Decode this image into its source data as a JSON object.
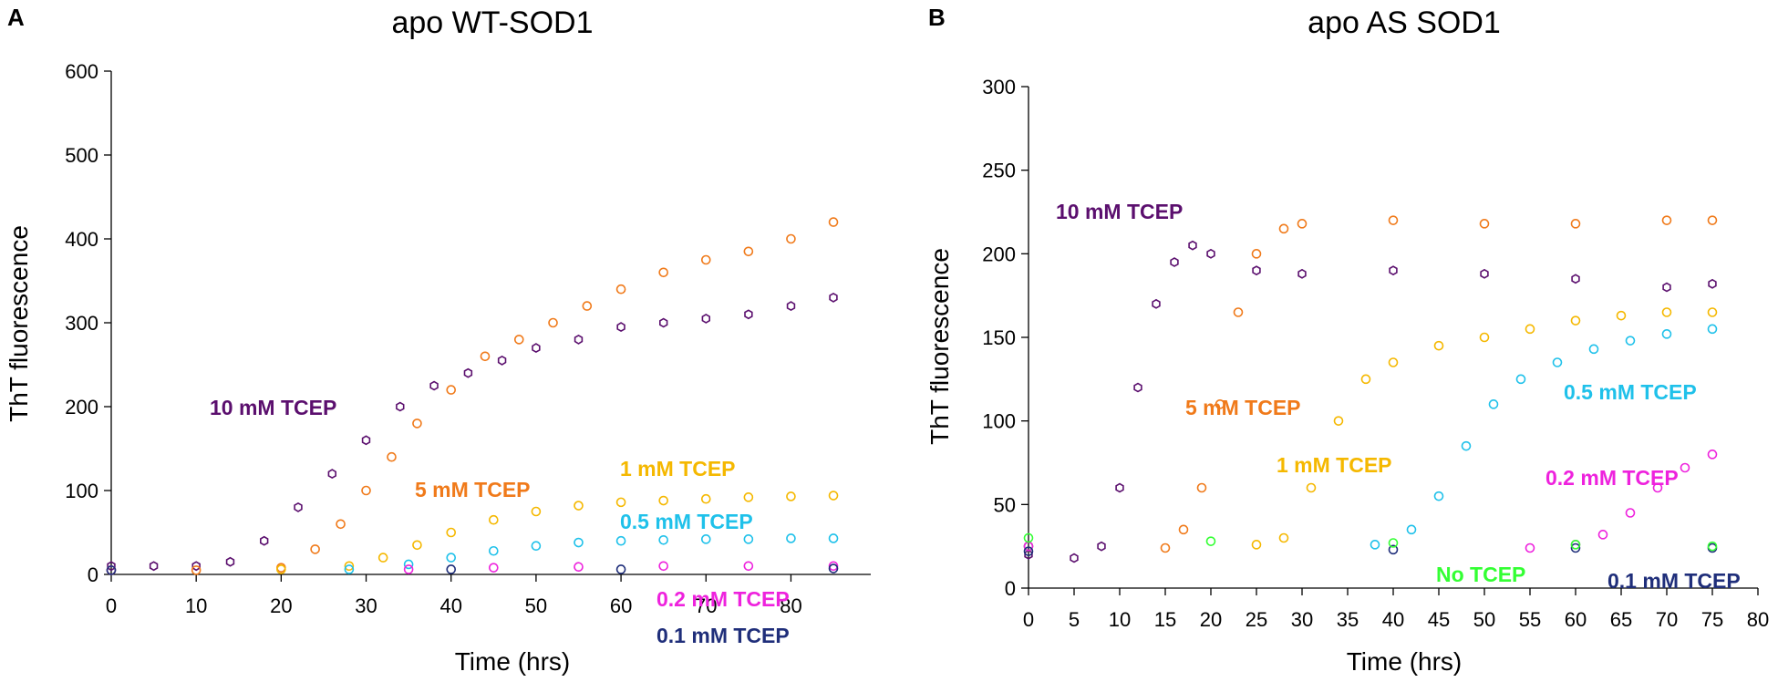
{
  "chart_data": [
    {
      "type": "scatter",
      "panel": "A",
      "title": "apo WT-SOD1",
      "xlabel": "Time (hrs)",
      "ylabel": "ThT fluorescence",
      "xlim": [
        0,
        88
      ],
      "ylim": [
        0,
        600
      ],
      "xticks": [
        "0",
        "10",
        "20",
        "30",
        "40",
        "50",
        "60",
        "70",
        "80"
      ],
      "yticks": [
        "0",
        "100",
        "200",
        "300",
        "400",
        "500",
        "600"
      ],
      "series": [
        {
          "name": "10 mM TCEP",
          "color": "#5b0f6e",
          "marker": "hexagon",
          "points": [
            [
              0,
              10
            ],
            [
              5,
              10
            ],
            [
              10,
              10
            ],
            [
              14,
              15
            ],
            [
              18,
              40
            ],
            [
              22,
              80
            ],
            [
              26,
              120
            ],
            [
              30,
              160
            ],
            [
              34,
              200
            ],
            [
              38,
              225
            ],
            [
              42,
              240
            ],
            [
              46,
              255
            ],
            [
              50,
              270
            ],
            [
              55,
              280
            ],
            [
              60,
              295
            ],
            [
              65,
              300
            ],
            [
              70,
              305
            ],
            [
              75,
              310
            ],
            [
              80,
              320
            ],
            [
              85,
              330
            ]
          ]
        },
        {
          "name": "5 mM TCEP",
          "color": "#f07a1a",
          "marker": "circle",
          "points": [
            [
              0,
              5
            ],
            [
              10,
              5
            ],
            [
              20,
              8
            ],
            [
              24,
              30
            ],
            [
              27,
              60
            ],
            [
              30,
              100
            ],
            [
              33,
              140
            ],
            [
              36,
              180
            ],
            [
              40,
              220
            ],
            [
              44,
              260
            ],
            [
              48,
              280
            ],
            [
              52,
              300
            ],
            [
              56,
              320
            ],
            [
              60,
              340
            ],
            [
              65,
              360
            ],
            [
              70,
              375
            ],
            [
              75,
              385
            ],
            [
              80,
              400
            ],
            [
              85,
              420
            ]
          ]
        },
        {
          "name": "1 mM TCEP",
          "color": "#f5b800",
          "marker": "circle",
          "points": [
            [
              0,
              5
            ],
            [
              20,
              6
            ],
            [
              28,
              10
            ],
            [
              32,
              20
            ],
            [
              36,
              35
            ],
            [
              40,
              50
            ],
            [
              45,
              65
            ],
            [
              50,
              75
            ],
            [
              55,
              82
            ],
            [
              60,
              86
            ],
            [
              65,
              88
            ],
            [
              70,
              90
            ],
            [
              75,
              92
            ],
            [
              80,
              93
            ],
            [
              85,
              94
            ]
          ]
        },
        {
          "name": "0.5 mM TCEP",
          "color": "#1fc1ea",
          "marker": "circle",
          "points": [
            [
              0,
              5
            ],
            [
              28,
              6
            ],
            [
              35,
              12
            ],
            [
              40,
              20
            ],
            [
              45,
              28
            ],
            [
              50,
              34
            ],
            [
              55,
              38
            ],
            [
              60,
              40
            ],
            [
              65,
              41
            ],
            [
              70,
              42
            ],
            [
              75,
              42
            ],
            [
              80,
              43
            ],
            [
              85,
              43
            ]
          ]
        },
        {
          "name": "0.2 mM TCEP",
          "color": "#ee22dd",
          "marker": "circle",
          "points": [
            [
              0,
              5
            ],
            [
              35,
              6
            ],
            [
              45,
              8
            ],
            [
              55,
              9
            ],
            [
              65,
              10
            ],
            [
              75,
              10
            ],
            [
              85,
              10
            ]
          ]
        },
        {
          "name": "0.1 mM TCEP",
          "color": "#1f2e7a",
          "marker": "circle",
          "points": [
            [
              0,
              5
            ],
            [
              40,
              6
            ],
            [
              60,
              6
            ],
            [
              85,
              7
            ]
          ]
        }
      ]
    },
    {
      "type": "scatter",
      "panel": "B",
      "title": "apo AS SOD1",
      "xlabel": "Time (hrs)",
      "ylabel": "ThT fluorescence",
      "xlim": [
        0,
        80
      ],
      "ylim": [
        0,
        300
      ],
      "xticks": [
        "0",
        "5",
        "10",
        "15",
        "20",
        "25",
        "30",
        "35",
        "40",
        "45",
        "50",
        "55",
        "60",
        "65",
        "70",
        "75",
        "80"
      ],
      "yticks": [
        "0",
        "50",
        "100",
        "150",
        "200",
        "250",
        "300"
      ],
      "series": [
        {
          "name": "10 mM TCEP",
          "color": "#5b0f6e",
          "marker": "hexagon",
          "points": [
            [
              0,
              20
            ],
            [
              5,
              18
            ],
            [
              8,
              25
            ],
            [
              10,
              60
            ],
            [
              12,
              120
            ],
            [
              14,
              170
            ],
            [
              16,
              195
            ],
            [
              18,
              205
            ],
            [
              20,
              200
            ],
            [
              25,
              190
            ],
            [
              30,
              188
            ],
            [
              40,
              190
            ],
            [
              50,
              188
            ],
            [
              60,
              185
            ],
            [
              70,
              180
            ],
            [
              75,
              182
            ]
          ]
        },
        {
          "name": "5 mM TCEP",
          "color": "#f07a1a",
          "marker": "circle",
          "points": [
            [
              0,
              25
            ],
            [
              15,
              24
            ],
            [
              17,
              35
            ],
            [
              19,
              60
            ],
            [
              21,
              110
            ],
            [
              23,
              165
            ],
            [
              25,
              200
            ],
            [
              28,
              215
            ],
            [
              30,
              218
            ],
            [
              40,
              220
            ],
            [
              50,
              218
            ],
            [
              60,
              218
            ],
            [
              70,
              220
            ],
            [
              75,
              220
            ]
          ]
        },
        {
          "name": "1 mM TCEP",
          "color": "#f5b800",
          "marker": "circle",
          "points": [
            [
              0,
              25
            ],
            [
              25,
              26
            ],
            [
              28,
              30
            ],
            [
              31,
              60
            ],
            [
              34,
              100
            ],
            [
              37,
              125
            ],
            [
              40,
              135
            ],
            [
              45,
              145
            ],
            [
              50,
              150
            ],
            [
              55,
              155
            ],
            [
              60,
              160
            ],
            [
              65,
              163
            ],
            [
              70,
              165
            ],
            [
              75,
              165
            ]
          ]
        },
        {
          "name": "0.5 mM TCEP",
          "color": "#1fc1ea",
          "marker": "circle",
          "points": [
            [
              0,
              25
            ],
            [
              38,
              26
            ],
            [
              42,
              35
            ],
            [
              45,
              55
            ],
            [
              48,
              85
            ],
            [
              51,
              110
            ],
            [
              54,
              125
            ],
            [
              58,
              135
            ],
            [
              62,
              143
            ],
            [
              66,
              148
            ],
            [
              70,
              152
            ],
            [
              75,
              155
            ]
          ]
        },
        {
          "name": "0.2 mM TCEP",
          "color": "#ee22dd",
          "marker": "circle",
          "points": [
            [
              0,
              25
            ],
            [
              55,
              24
            ],
            [
              60,
              26
            ],
            [
              63,
              32
            ],
            [
              66,
              45
            ],
            [
              69,
              60
            ],
            [
              72,
              72
            ],
            [
              75,
              80
            ]
          ]
        },
        {
          "name": "0.1 mM TCEP",
          "color": "#1f2e7a",
          "marker": "circle",
          "points": [
            [
              0,
              22
            ],
            [
              40,
              23
            ],
            [
              60,
              24
            ],
            [
              75,
              24
            ]
          ]
        },
        {
          "name": "No TCEP",
          "color": "#33ff33",
          "marker": "circle",
          "points": [
            [
              0,
              30
            ],
            [
              20,
              28
            ],
            [
              40,
              27
            ],
            [
              60,
              26
            ],
            [
              75,
              25
            ]
          ]
        }
      ]
    }
  ],
  "panels": [
    {
      "letter": "A",
      "title": "apo WT-SOD1",
      "xlabel": "Time (hrs)",
      "ylabel": "ThT fluorescence",
      "labels": [
        {
          "text": "10 mM TCEP",
          "color": "#5b0f6e"
        },
        {
          "text": "5 mM TCEP",
          "color": "#f07a1a"
        },
        {
          "text": "1 mM TCEP",
          "color": "#f5b800"
        },
        {
          "text": "0.5 mM TCEP",
          "color": "#1fc1ea"
        },
        {
          "text": "0.2 mM TCEP",
          "color": "#ee22dd"
        },
        {
          "text": "0.1 mM TCEP",
          "color": "#1f2e7a"
        }
      ]
    },
    {
      "letter": "B",
      "title": "apo AS SOD1",
      "xlabel": "Time (hrs)",
      "ylabel": "ThT fluorescence",
      "labels": [
        {
          "text": "10 mM TCEP",
          "color": "#5b0f6e"
        },
        {
          "text": "5 mM TCEP",
          "color": "#f07a1a"
        },
        {
          "text": "1 mM TCEP",
          "color": "#f5b800"
        },
        {
          "text": "0.5 mM TCEP",
          "color": "#1fc1ea"
        },
        {
          "text": "0.2 mM TCEP",
          "color": "#ee22dd"
        },
        {
          "text": "No TCEP",
          "color": "#33ff33"
        },
        {
          "text": "0.1 mM TCEP",
          "color": "#1f2e7a"
        }
      ]
    }
  ]
}
